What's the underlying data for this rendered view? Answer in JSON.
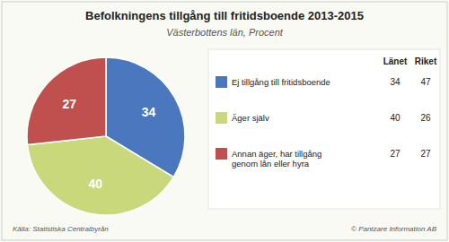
{
  "chart_data": {
    "type": "pie",
    "title": "Befolkningens tillgång till fritidsboende 2013-2015",
    "subtitle": "Västerbottens län, Procent",
    "categories": [
      "Ej tillgång till fritidsboende",
      "Äger själv",
      "Annan äger, har tillgång\ngenom lån eller hyra"
    ],
    "series": [
      {
        "name": "Länet",
        "values": [
          34,
          40,
          27
        ]
      },
      {
        "name": "Riket",
        "values": [
          47,
          26,
          27
        ]
      }
    ],
    "colors": [
      "#4b77be",
      "#c8d87a",
      "#c0504d"
    ],
    "data_labels": true,
    "annotations": [
      "Källa: Statistiska Centralbyrån",
      "© Pantzare Information AB"
    ]
  }
}
